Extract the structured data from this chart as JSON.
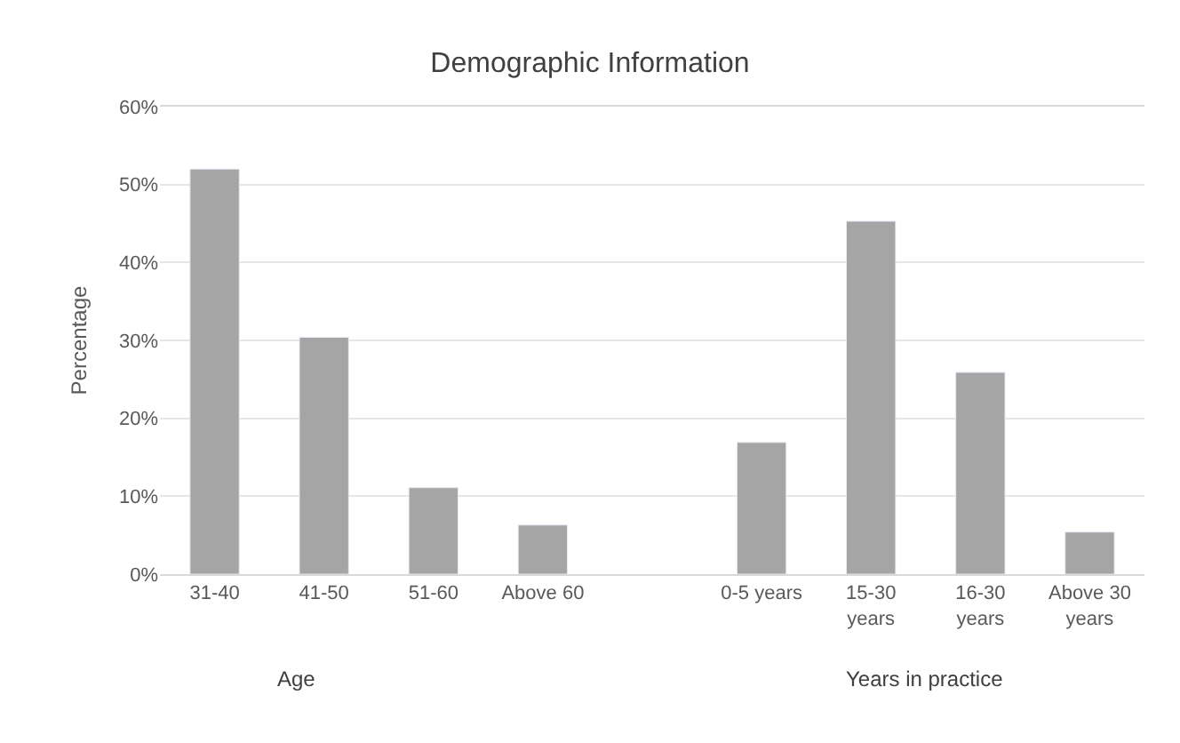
{
  "chart_data": {
    "type": "bar",
    "title": "Demographic Information",
    "ylabel": "Percentage",
    "categories": [
      "31-40",
      "41-50",
      "51-60",
      "Above 60",
      null,
      "0-5 years",
      "15-30 years",
      "16-30 years",
      "Above 30 years"
    ],
    "values": [
      52.0,
      30.4,
      11.1,
      6.3,
      null,
      16.9,
      45.3,
      25.9,
      5.4
    ],
    "color": "#a5a5a5",
    "ylim": [
      0,
      60
    ],
    "yticks": [
      {
        "value": 0,
        "label": "0%"
      },
      {
        "value": 10,
        "label": "10%"
      },
      {
        "value": 20,
        "label": "20%"
      },
      {
        "value": 30,
        "label": "30%"
      },
      {
        "value": 40,
        "label": "40%"
      },
      {
        "value": 50,
        "label": "50%"
      },
      {
        "value": 60,
        "label": "60%"
      }
    ],
    "grid": "y",
    "annotations": [
      "Age",
      "Years in practice"
    ]
  }
}
